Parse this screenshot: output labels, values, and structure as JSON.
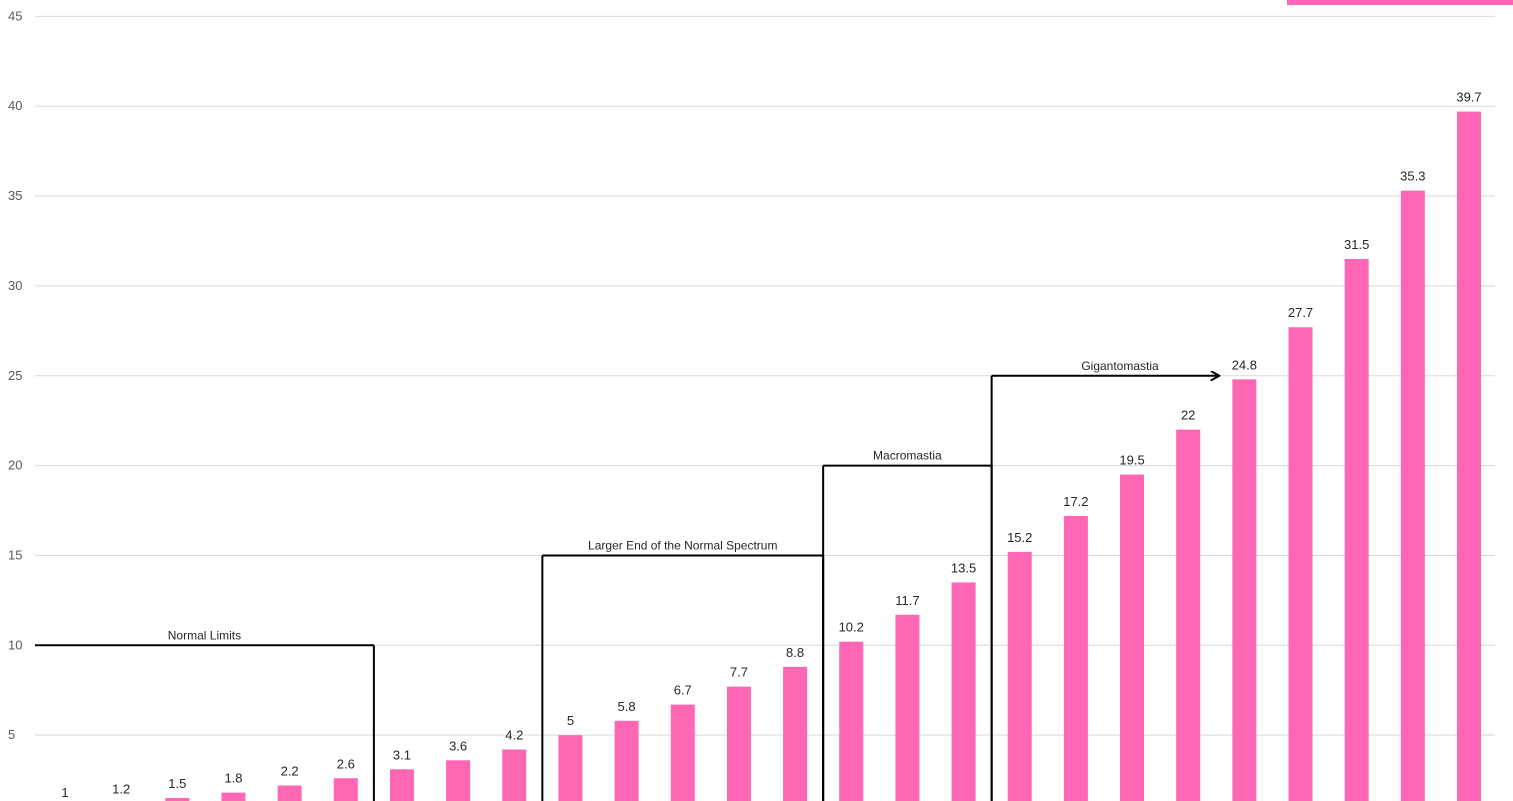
{
  "chart_data": {
    "type": "bar",
    "title": "",
    "xlabel": "",
    "ylabel": "",
    "ylim": [
      0,
      45
    ],
    "yticks": [
      "5",
      "10",
      "15",
      "20",
      "25",
      "30",
      "35",
      "40",
      "45"
    ],
    "grid": true,
    "values": [
      1,
      1.2,
      1.5,
      1.8,
      2.2,
      2.6,
      3.1,
      3.6,
      4.2,
      5,
      5.8,
      6.7,
      7.7,
      8.8,
      10.2,
      11.7,
      13.5,
      15.2,
      17.2,
      19.5,
      22,
      24.8,
      27.7,
      31.5,
      35.3,
      39.7
    ],
    "data_labels": [
      "1",
      "1.2",
      "1.5",
      "1.8",
      "2.2",
      "2.6",
      "3.1",
      "3.6",
      "4.2",
      "5",
      "5.8",
      "6.7",
      "7.7",
      "8.8",
      "10.2",
      "11.7",
      "13.5",
      "15.2",
      "17.2",
      "19.5",
      "22",
      "24.8",
      "27.7",
      "31.5",
      "35.3",
      "39.7"
    ],
    "annotations": [
      {
        "text": "Normal Limits",
        "level": 10,
        "from_bar": -0.5,
        "to_bar": 5.5
      },
      {
        "text": "Larger End of the Normal Spectrum",
        "level": 15,
        "from_bar": 8.5,
        "to_bar": 13.5
      },
      {
        "text": "Macromastia",
        "level": 20,
        "from_bar": 13.5,
        "to_bar": 16.5
      },
      {
        "text": "Gigantomastia",
        "level": 25,
        "from_bar": 16.5,
        "to_bar": 21,
        "arrow": true
      }
    ],
    "colors": {
      "bar": "#ff66b3",
      "grid": "#d9d9d9",
      "bracket": "#000000",
      "legend_swatch": "#ff66b3"
    }
  }
}
